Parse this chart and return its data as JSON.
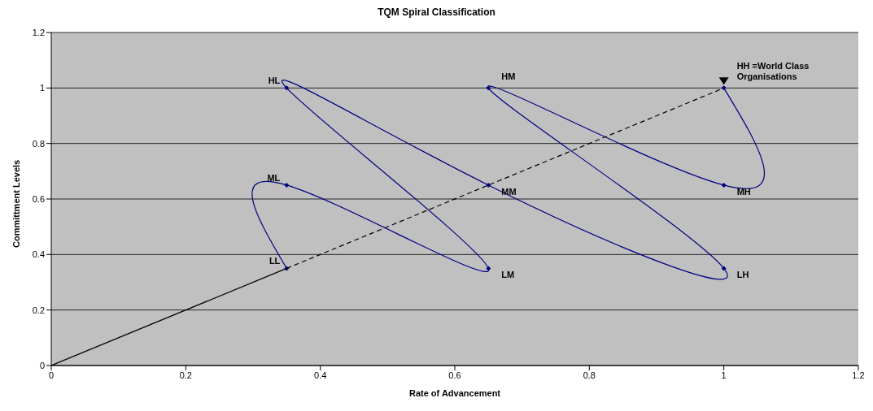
{
  "chart_data": {
    "type": "line",
    "title": "TQM Spiral Classification",
    "xlabel": "Rate of Advancement",
    "ylabel": "Committment Levels",
    "xlim": [
      0,
      1.2
    ],
    "xticks": [
      0,
      0.2,
      0.4,
      0.6,
      0.8,
      1,
      1.2
    ],
    "ylim": [
      0,
      1.2
    ],
    "yticks": [
      0,
      0.2,
      0.4,
      0.6,
      0.8,
      1,
      1.2
    ],
    "grid": "y",
    "legend": false,
    "series": [
      {
        "color": "#000080",
        "marker": "diamond",
        "x": [
          0.35,
          0.35,
          0.65,
          0.35,
          0.65,
          1,
          0.65,
          1,
          1
        ],
        "values": [
          0.35,
          0.65,
          0.35,
          1,
          0.65,
          0.35,
          1,
          0.65,
          1
        ]
      },
      {
        "color": "#000000",
        "marker": "none",
        "line_style": "solid",
        "x": [
          0,
          0.35
        ],
        "values": [
          0,
          0.35
        ]
      },
      {
        "color": "#000000",
        "marker": "none",
        "line_style": "dashed",
        "x": [
          0.35,
          1
        ],
        "values": [
          0.35,
          1
        ]
      }
    ],
    "annotations": [
      {
        "text": "LL",
        "x": 0.35,
        "y": 0.35
      },
      {
        "text": "ML",
        "x": 0.35,
        "y": 0.65
      },
      {
        "text": "HL",
        "x": 0.35,
        "y": 1
      },
      {
        "text": "LM",
        "x": 0.65,
        "y": 0.35
      },
      {
        "text": "MM",
        "x": 0.65,
        "y": 0.65
      },
      {
        "text": "HM",
        "x": 0.65,
        "y": 1
      },
      {
        "text": "LH",
        "x": 1,
        "y": 0.35
      },
      {
        "text": "MH",
        "x": 1,
        "y": 0.65
      },
      {
        "text": "HH =World Class Organisations",
        "x": 1,
        "y": 1
      }
    ]
  }
}
